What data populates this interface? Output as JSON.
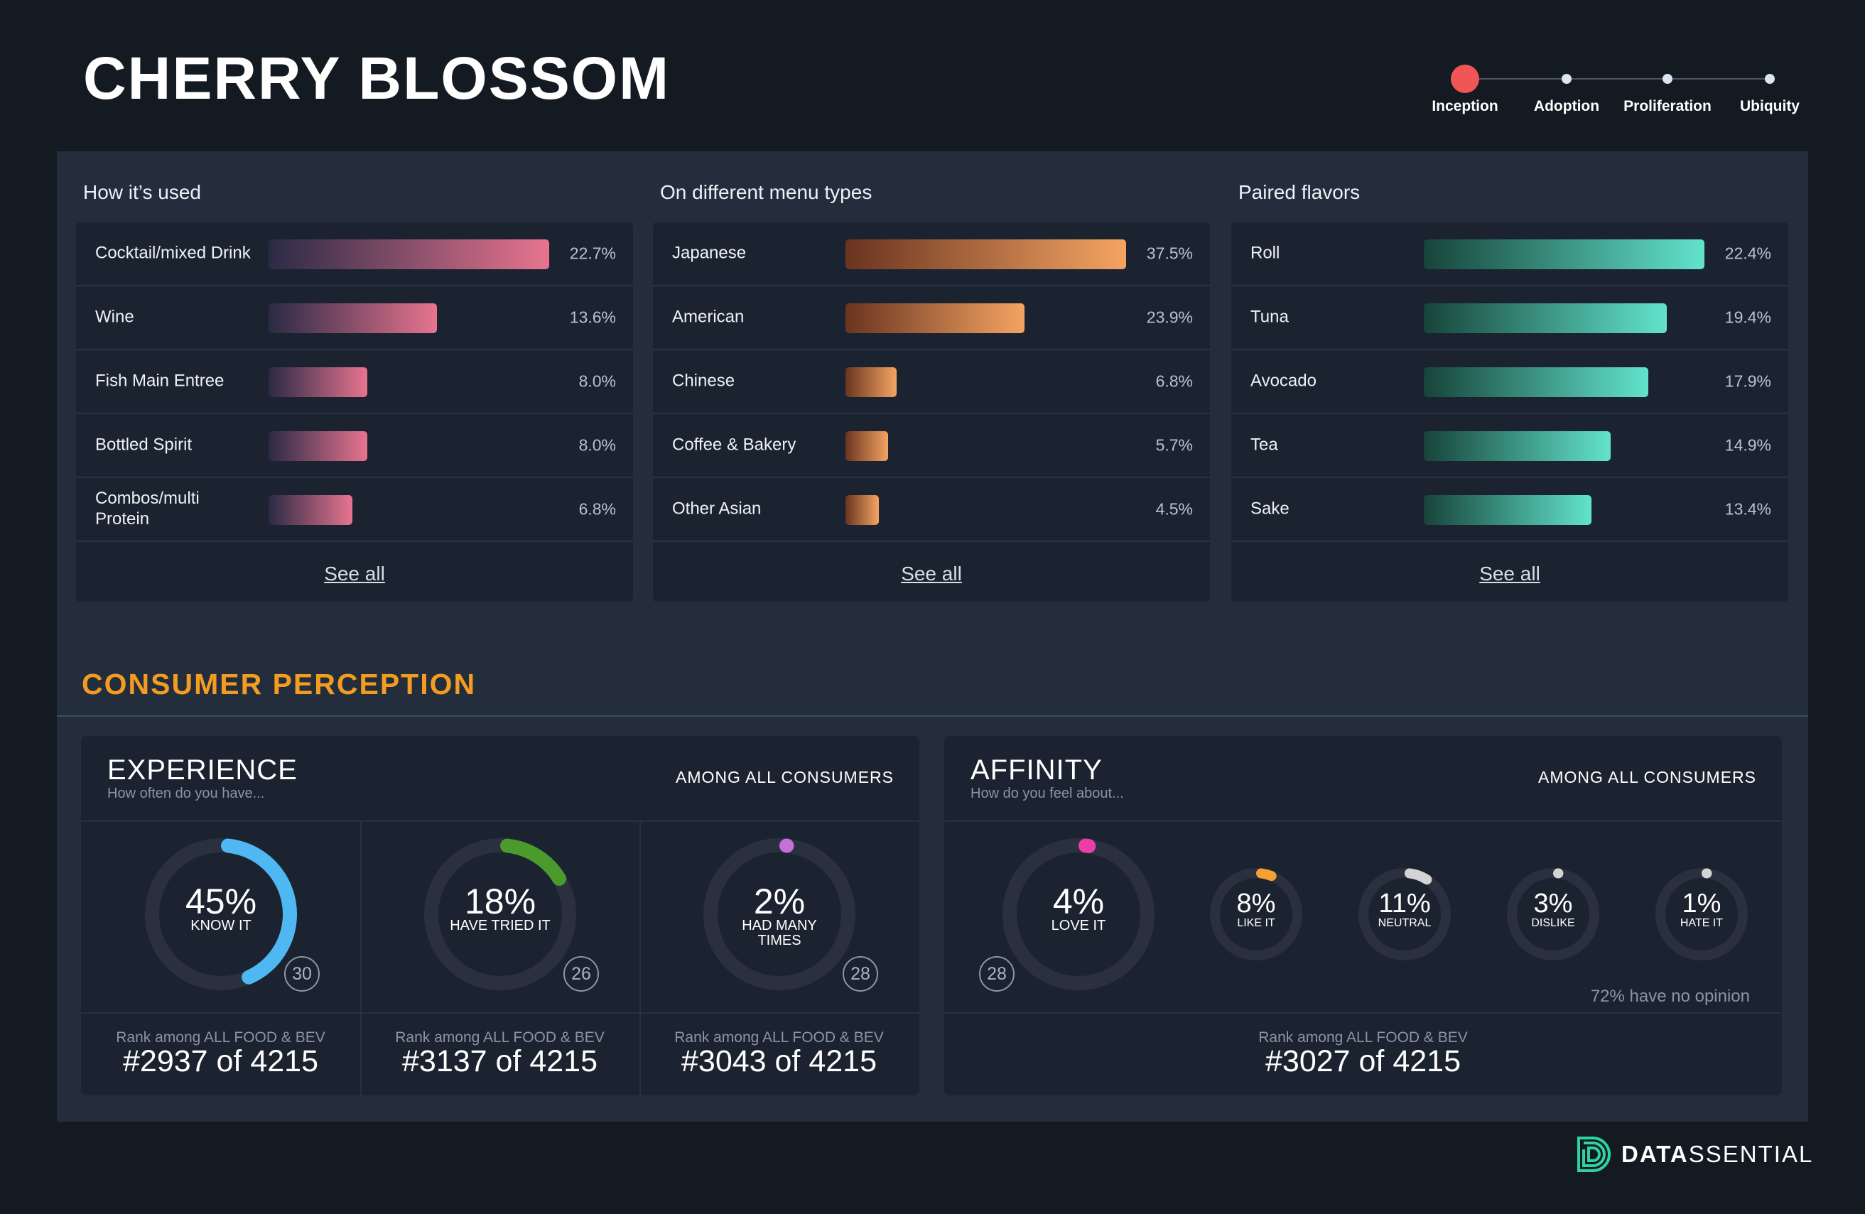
{
  "title": "CHERRY BLOSSOM",
  "timeline": {
    "stages": [
      "Inception",
      "Adoption",
      "Proliferation",
      "Ubiquity"
    ],
    "active": "Inception",
    "active_color": "#f25555"
  },
  "cards": [
    {
      "heading": "How it’s used",
      "see_all": "See all",
      "gradient": [
        "#2a2a45",
        "#e8748f"
      ],
      "rows": [
        {
          "label": "Cocktail/mixed Drink",
          "value": 22.7,
          "display": "22.7%"
        },
        {
          "label": "Wine",
          "value": 13.6,
          "display": "13.6%"
        },
        {
          "label": "Fish Main Entree",
          "value": 8.0,
          "display": "8.0%"
        },
        {
          "label": "Bottled Spirit",
          "value": 8.0,
          "display": "8.0%"
        },
        {
          "label": "Combos/multi Protein",
          "value": 6.8,
          "display": "6.8%"
        }
      ]
    },
    {
      "heading": "On different menu types",
      "see_all": "See all",
      "gradient": [
        "#6a3420",
        "#f4a462"
      ],
      "rows": [
        {
          "label": "Japanese",
          "value": 37.5,
          "display": "37.5%"
        },
        {
          "label": "American",
          "value": 23.9,
          "display": "23.9%"
        },
        {
          "label": "Chinese",
          "value": 6.8,
          "display": "6.8%"
        },
        {
          "label": "Coffee & Bakery",
          "value": 5.7,
          "display": "5.7%"
        },
        {
          "label": "Other Asian",
          "value": 4.5,
          "display": "4.5%"
        }
      ]
    },
    {
      "heading": "Paired flavors",
      "see_all": "See all",
      "gradient": [
        "#17443a",
        "#62e3cc"
      ],
      "rows": [
        {
          "label": "Roll",
          "value": 22.4,
          "display": "22.4%"
        },
        {
          "label": "Tuna",
          "value": 19.4,
          "display": "19.4%"
        },
        {
          "label": "Avocado",
          "value": 17.9,
          "display": "17.9%"
        },
        {
          "label": "Tea",
          "value": 14.9,
          "display": "14.9%"
        },
        {
          "label": "Sake",
          "value": 13.4,
          "display": "13.4%"
        }
      ]
    }
  ],
  "perception": {
    "title": "CONSUMER PERCEPTION",
    "experience": {
      "title": "EXPERIENCE",
      "subtitle": "How often do you have...",
      "among": "AMONG ALL CONSUMERS",
      "items": [
        {
          "pct": 45,
          "pct_label": "45%",
          "label": "KNOW IT",
          "color": "#4fb8f2",
          "badge": "30",
          "rank_label": "Rank among ALL FOOD & BEV",
          "rank": "#2937 of 4215"
        },
        {
          "pct": 18,
          "pct_label": "18%",
          "label": "HAVE TRIED IT",
          "color": "#4a9a2c",
          "badge": "26",
          "rank_label": "Rank among ALL FOOD & BEV",
          "rank": "#3137 of 4215"
        },
        {
          "pct": 2,
          "pct_label": "2%",
          "label": "HAD MANY TIMES",
          "color": "#c56fd9",
          "badge": "28",
          "rank_label": "Rank among ALL FOOD & BEV",
          "rank": "#3043 of 4215"
        }
      ]
    },
    "affinity": {
      "title": "AFFINITY",
      "subtitle": "How do you feel about...",
      "among": "AMONG ALL CONSUMERS",
      "main": {
        "pct": 4,
        "pct_label": "4%",
        "label": "LOVE IT",
        "color": "#ea3fa9",
        "badge": "28"
      },
      "items": [
        {
          "pct": 8,
          "pct_label": "8%",
          "label": "LIKE IT",
          "color": "#f5a033"
        },
        {
          "pct": 11,
          "pct_label": "11%",
          "label": "NEUTRAL",
          "color": "#d4d4d4"
        },
        {
          "pct": 3,
          "pct_label": "3%",
          "label": "DISLIKE",
          "color": "#d4d4d4"
        },
        {
          "pct": 1,
          "pct_label": "1%",
          "label": "HATE IT",
          "color": "#d4d4d4"
        }
      ],
      "no_opinion": "72% have no opinion",
      "rank_label": "Rank among ALL FOOD & BEV",
      "rank": "#3027 of 4215"
    }
  },
  "logo": {
    "bold": "DATA",
    "light": "SSENTIAL",
    "color": "#2ed3a0"
  }
}
